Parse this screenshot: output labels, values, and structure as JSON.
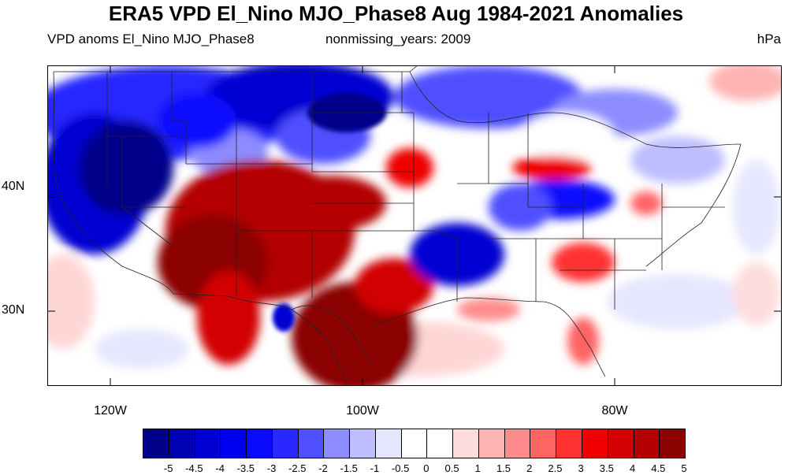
{
  "title": "ERA5 VPD El_Nino MJO_Phase8 Aug 1984-2021 Anomalies",
  "subtitle_left": "VPD anoms El_Nino MJO_Phase8",
  "subtitle_center": "nonmissing_years: 2009",
  "units": "hPa",
  "lat_labels": [
    "40N",
    "30N"
  ],
  "lon_labels": [
    "120W",
    "100W",
    "80W"
  ],
  "colorbar": {
    "colors": [
      "#00008b",
      "#0000b4",
      "#0000d2",
      "#0000f0",
      "#0a0aff",
      "#2828ff",
      "#5050ff",
      "#8c8cff",
      "#bebeff",
      "#e6e6ff",
      "#ffffff",
      "#ffffff",
      "#ffdcdc",
      "#ffb4b4",
      "#ff8c8c",
      "#ff6464",
      "#ff3232",
      "#f00000",
      "#d20000",
      "#b40000",
      "#8b0000"
    ],
    "labels": [
      "-5",
      "-4.5",
      "-4",
      "-3.5",
      "-3",
      "-2.5",
      "-2",
      "-1.5",
      "-1",
      "-0.5",
      "0",
      "0.5",
      "1",
      "1.5",
      "2",
      "2.5",
      "3",
      "3.5",
      "4",
      "4.5",
      "5"
    ]
  }
}
